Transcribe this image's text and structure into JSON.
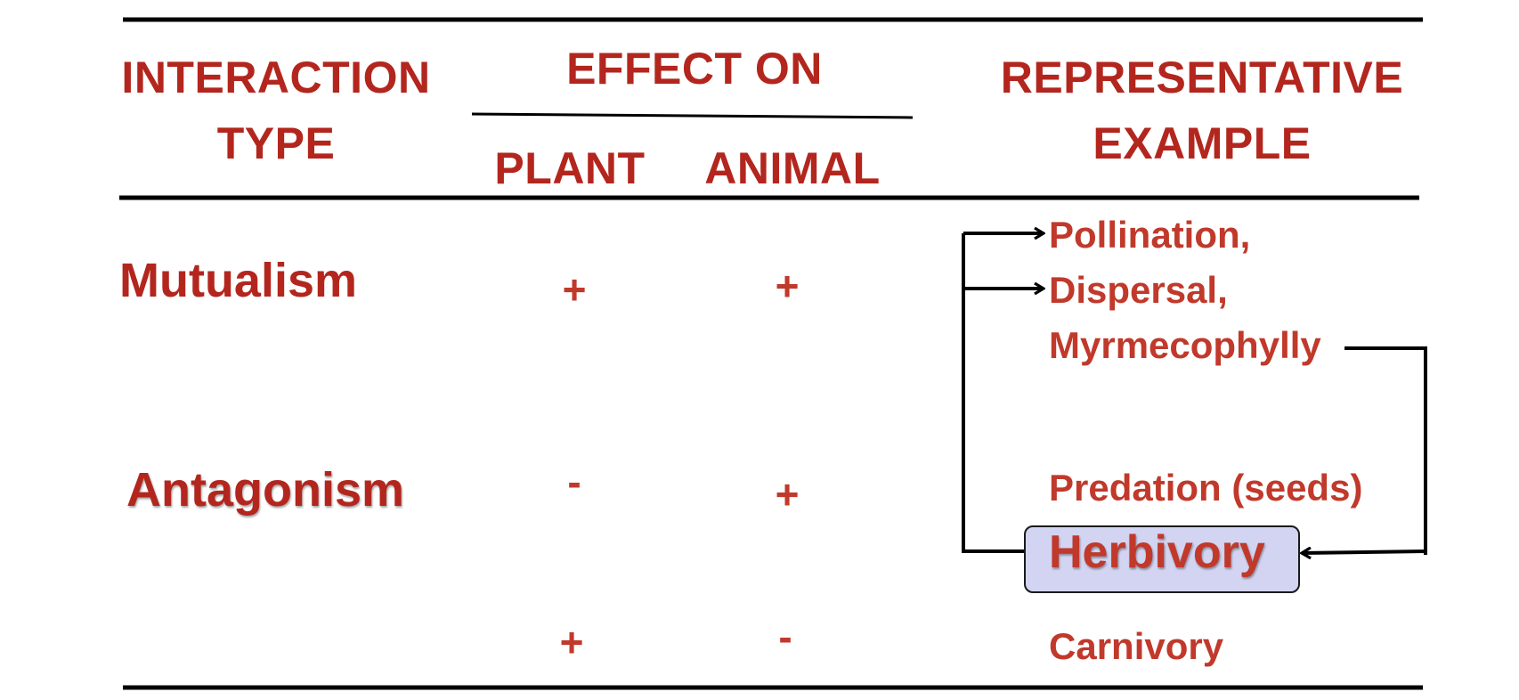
{
  "headers": {
    "interaction_type": [
      "INTERACTION",
      "TYPE"
    ],
    "effect_on": "EFFECT ON",
    "plant": "PLANT",
    "animal": "ANIMAL",
    "representative_example": [
      "REPRESENTATIVE",
      "EXAMPLE"
    ]
  },
  "rows": [
    {
      "type": "Mutualism",
      "plant": "+",
      "animal": "+"
    },
    {
      "type": "Antagonism",
      "plant": "-",
      "animal": "+"
    },
    {
      "type": "",
      "plant": "+",
      "animal": "-"
    }
  ],
  "examples": [
    "Pollination,",
    "Dispersal,",
    "Myrmecophylly",
    "Predation (seeds)",
    "Herbivory",
    "Carnivory"
  ],
  "colors": {
    "header": "#b3261e",
    "body": "#c0392b",
    "highlight_box": "#d2d4f2",
    "lines": "#000000"
  }
}
